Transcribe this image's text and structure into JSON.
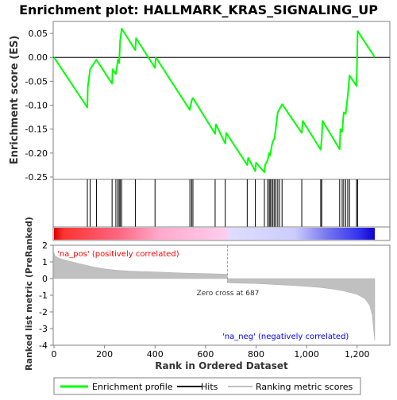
{
  "title": "Enrichment plot: HALLMARK_KRAS_SIGNALING_UP",
  "colors": {
    "es_line": "#00ff00",
    "hit": "#000000",
    "metric_fill": "#c0c0c0",
    "zero_cross": "#a0a0a0",
    "pos_label": "#ff0000",
    "neg_label": "#0000ff"
  },
  "legend": {
    "items": [
      {
        "label": "Enrichment profile",
        "color": "#00ff00",
        "style": "thick-line"
      },
      {
        "label": "Hits",
        "color": "#000000",
        "style": "thin-line"
      },
      {
        "label": "Ranking metric scores",
        "color": "#c0c0c0",
        "style": "thin-line"
      }
    ]
  },
  "chart_data": [
    {
      "type": "line",
      "name": "enrichment-score",
      "ylabel": "Enrichment score (ES)",
      "ylim": [
        -0.255,
        0.075
      ],
      "xlim": [
        0,
        1280
      ],
      "y_ticks": [
        "0.05",
        "0.00",
        "-0.05",
        "-0.10",
        "-0.15",
        "-0.20",
        "-0.25"
      ],
      "y_tick_values": [
        0.05,
        0.0,
        -0.05,
        -0.1,
        -0.15,
        -0.2,
        -0.25
      ],
      "grid": false,
      "series": [
        {
          "x": [
            0,
            132,
            134,
            143,
            168,
            230,
            232,
            245,
            253,
            258,
            262,
            268,
            322,
            325,
            400,
            403,
            538,
            545,
            550,
            638,
            641,
            678,
            682,
            765,
            769,
            797,
            800,
            833,
            836,
            846,
            852,
            856,
            862,
            867,
            873,
            879,
            886,
            893,
            903,
            981,
            985,
            1056,
            1060,
            1063,
            1131,
            1134,
            1141,
            1147,
            1155,
            1163,
            1170,
            1198,
            1202,
            1270
          ],
          "y": [
            0.0,
            -0.105,
            -0.062,
            -0.025,
            -0.005,
            -0.055,
            -0.025,
            -0.035,
            -0.005,
            -0.012,
            0.035,
            0.06,
            0.015,
            0.04,
            -0.022,
            0.0,
            -0.11,
            -0.09,
            -0.085,
            -0.16,
            -0.14,
            -0.18,
            -0.158,
            -0.225,
            -0.21,
            -0.238,
            -0.22,
            -0.24,
            -0.225,
            -0.215,
            -0.2,
            -0.205,
            -0.185,
            -0.175,
            -0.17,
            -0.145,
            -0.115,
            -0.108,
            -0.098,
            -0.158,
            -0.133,
            -0.193,
            -0.17,
            -0.133,
            -0.192,
            -0.15,
            -0.155,
            -0.115,
            -0.118,
            -0.08,
            -0.038,
            -0.06,
            0.055,
            0.0
          ]
        }
      ]
    },
    {
      "type": "hits",
      "name": "hit-positions",
      "xlim": [
        0,
        1280
      ],
      "x": [
        132,
        143,
        168,
        230,
        245,
        253,
        258,
        262,
        268,
        322,
        400,
        538,
        545,
        550,
        638,
        678,
        765,
        797,
        833,
        846,
        852,
        856,
        862,
        867,
        873,
        879,
        886,
        893,
        903,
        981,
        1056,
        1060,
        1131,
        1141,
        1147,
        1155,
        1163,
        1170,
        1198,
        1202
      ]
    },
    {
      "type": "area",
      "name": "ranked-list-metric",
      "xlabel": "Rank in Ordered Dataset",
      "ylabel": "Ranked list metric (PreRanked)",
      "ylim": [
        -4,
        2
      ],
      "xlim": [
        0,
        1280
      ],
      "x_ticks": [
        "0",
        "200",
        "400",
        "600",
        "800",
        "1,000",
        "1,200"
      ],
      "x_tick_values": [
        0,
        200,
        400,
        600,
        800,
        1000,
        1200
      ],
      "y_ticks": [
        "2",
        "1",
        "0",
        "-1",
        "-2",
        "-3",
        "-4"
      ],
      "y_tick_values": [
        2,
        1,
        0,
        -1,
        -2,
        -3,
        -4
      ],
      "x": [
        0,
        5,
        20,
        50,
        100,
        150,
        200,
        250,
        300,
        350,
        400,
        450,
        500,
        550,
        600,
        650,
        686,
        687,
        700,
        750,
        800,
        850,
        900,
        950,
        1000,
        1050,
        1100,
        1150,
        1200,
        1230,
        1250,
        1260,
        1265,
        1270
      ],
      "values": [
        1.55,
        1.35,
        1.22,
        1.08,
        0.9,
        0.72,
        0.58,
        0.5,
        0.45,
        0.42,
        0.4,
        0.37,
        0.34,
        0.32,
        0.3,
        0.28,
        0.26,
        -0.25,
        -0.26,
        -0.28,
        -0.3,
        -0.34,
        -0.38,
        -0.42,
        -0.47,
        -0.53,
        -0.62,
        -0.75,
        -0.95,
        -1.2,
        -1.6,
        -2.2,
        -3.0,
        -3.7
      ],
      "annotations": {
        "zero_cross": "Zero cross at 687",
        "zero_cross_x": 687,
        "pos_label": "'na_pos' (positively correlated)",
        "neg_label": "'na_neg' (negatively correlated)"
      }
    }
  ]
}
